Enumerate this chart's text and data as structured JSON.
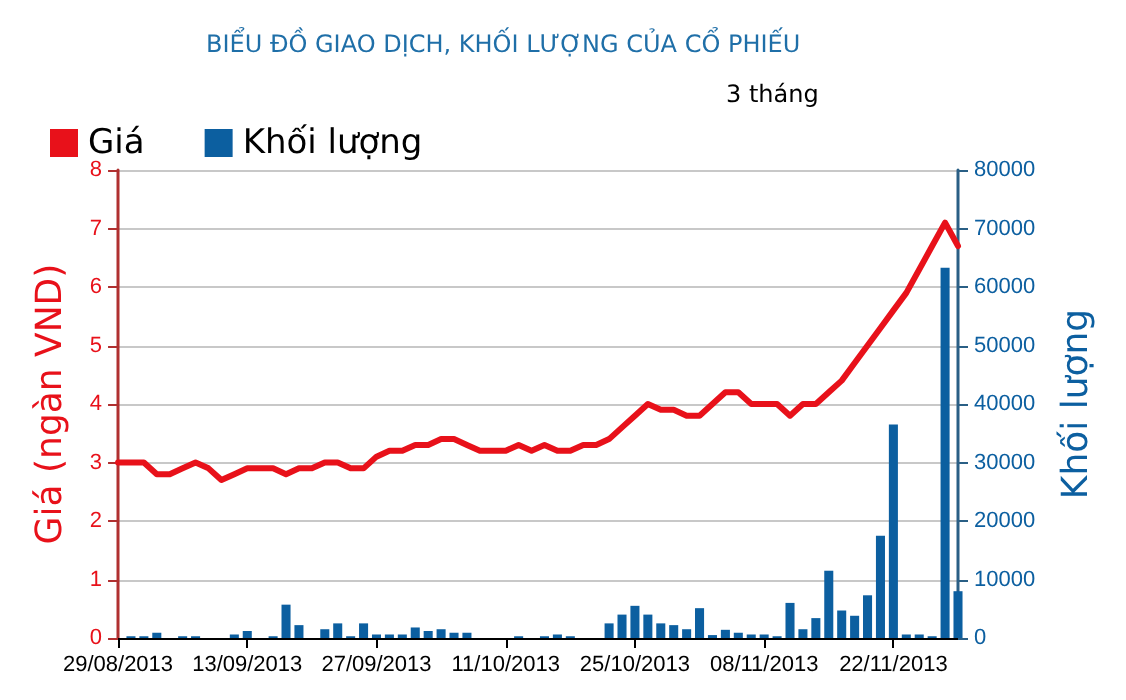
{
  "chart_data": {
    "type": "bar",
    "title": "BIỂU ĐỒ GIAO DỊCH, KHỐI LƯỢNG CỦA CỔ PHIẾU",
    "subtitle": "3 tháng",
    "ylabel": "Giá (ngàn VND)",
    "y2label": "Khối lượng",
    "categories": [
      "29/08/2013",
      null,
      null,
      null,
      null,
      null,
      null,
      null,
      null,
      null,
      "13/09/2013",
      null,
      null,
      null,
      null,
      null,
      null,
      null,
      null,
      null,
      "27/09/2013",
      null,
      null,
      null,
      null,
      null,
      null,
      null,
      null,
      null,
      "11/10/2013",
      null,
      null,
      null,
      null,
      null,
      null,
      null,
      null,
      null,
      "25/10/2013",
      null,
      null,
      null,
      null,
      null,
      null,
      null,
      null,
      null,
      "08/11/2013",
      null,
      null,
      null,
      null,
      null,
      null,
      null,
      null,
      null,
      "22/11/2013",
      null,
      null,
      null,
      null,
      null
    ],
    "series": [
      {
        "name": "Giá",
        "type": "line",
        "color": "#e8111a",
        "marker": "none",
        "line_style": "solid",
        "values": [
          3.0,
          3.0,
          3.0,
          2.8,
          2.8,
          2.9,
          3.0,
          2.9,
          2.7,
          2.8,
          2.9,
          2.9,
          2.9,
          2.8,
          2.9,
          2.9,
          3.0,
          3.0,
          2.9,
          2.9,
          3.1,
          3.2,
          3.2,
          3.3,
          3.3,
          3.4,
          3.4,
          3.3,
          3.2,
          3.2,
          3.2,
          3.3,
          3.2,
          3.3,
          3.2,
          3.2,
          3.3,
          3.3,
          3.4,
          3.6,
          3.8,
          4.0,
          3.9,
          3.9,
          3.8,
          3.8,
          4.0,
          4.2,
          4.2,
          4.0,
          4.0,
          4.0,
          3.8,
          4.0,
          4.0,
          4.2,
          4.4,
          4.7,
          5.0,
          5.3,
          5.6,
          5.9,
          6.3,
          6.7,
          7.1,
          6.7
        ]
      },
      {
        "name": "Khối lượng",
        "axis": "y2",
        "color": "#0c5fa0",
        "values": [
          0,
          300,
          300,
          900,
          0,
          300,
          300,
          0,
          0,
          600,
          1200,
          0,
          300,
          5700,
          2200,
          0,
          1500,
          2500,
          300,
          2500,
          600,
          600,
          600,
          1800,
          1200,
          1500,
          900,
          900,
          0,
          0,
          0,
          300,
          0,
          300,
          600,
          300,
          0,
          0,
          2500,
          4000,
          5500,
          4000,
          2500,
          2200,
          1500,
          5100,
          500,
          1400,
          900,
          600,
          600,
          300,
          6000,
          1500,
          3400,
          11500,
          4700,
          3800,
          7300,
          17500,
          36500,
          600,
          600,
          300,
          63300,
          8000
        ]
      }
    ],
    "ylim": [
      0,
      8
    ],
    "yticks": [
      0,
      1,
      2,
      3,
      4,
      5,
      6,
      7,
      8
    ],
    "y2lim": [
      0,
      80000
    ],
    "y2ticks": [
      0,
      10000,
      20000,
      30000,
      40000,
      50000,
      60000,
      70000,
      80000
    ],
    "grid": "y",
    "legend": "top left"
  }
}
